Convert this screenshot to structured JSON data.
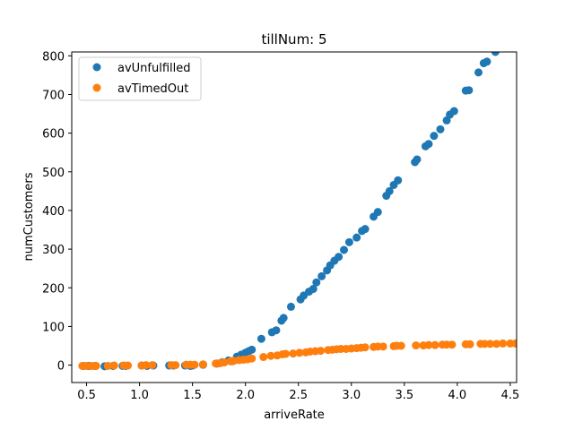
{
  "chart_data": {
    "type": "scatter",
    "title": "tillNum: 5",
    "xlabel": "arriveRate",
    "ylabel": "numCustomers",
    "xlim": [
      0.36,
      4.56
    ],
    "ylim": [
      -45,
      810
    ],
    "xticks": [
      0.5,
      1.0,
      1.5,
      2.0,
      2.5,
      3.0,
      3.5,
      4.0,
      4.5
    ],
    "yticks": [
      0,
      100,
      200,
      300,
      400,
      500,
      600,
      700,
      800
    ],
    "xtick_labels": [
      "0.5",
      "1.0",
      "1.5",
      "2.0",
      "2.5",
      "3.0",
      "3.5",
      "4.0",
      "4.5"
    ],
    "ytick_labels": [
      "0",
      "100",
      "200",
      "300",
      "400",
      "500",
      "600",
      "700",
      "800"
    ],
    "grid": false,
    "legend_position": "top-left",
    "series": [
      {
        "name": "avUnfulfilled",
        "color": "#1f77b4",
        "x": [
          0.47,
          0.52,
          0.58,
          0.67,
          0.75,
          0.84,
          0.87,
          1.02,
          1.07,
          1.13,
          1.28,
          1.32,
          1.43,
          1.48,
          1.5,
          1.6,
          1.73,
          1.78,
          1.84,
          1.87,
          1.92,
          1.96,
          2.0,
          2.03,
          2.06,
          2.15,
          2.25,
          2.29,
          2.34,
          2.36,
          2.43,
          2.52,
          2.55,
          2.6,
          2.64,
          2.67,
          2.72,
          2.77,
          2.8,
          2.84,
          2.88,
          2.93,
          2.98,
          3.05,
          3.1,
          3.13,
          3.21,
          3.25,
          3.33,
          3.36,
          3.4,
          3.44,
          3.6,
          3.62,
          3.7,
          3.73,
          3.78,
          3.84,
          3.9,
          3.93,
          3.97,
          4.08,
          4.11,
          4.2,
          4.25,
          4.28,
          4.36
        ],
        "y": [
          -2,
          -2,
          -2,
          -3,
          -2,
          -2,
          -2,
          -1,
          -2,
          -1,
          -1,
          -1,
          -1,
          -2,
          -1,
          1,
          4,
          7,
          12,
          10,
          22,
          27,
          32,
          36,
          40,
          68,
          85,
          90,
          115,
          122,
          151,
          170,
          180,
          190,
          197,
          214,
          230,
          245,
          258,
          270,
          280,
          298,
          318,
          330,
          347,
          352,
          384,
          396,
          438,
          450,
          466,
          478,
          525,
          532,
          566,
          572,
          593,
          610,
          633,
          648,
          657,
          710,
          711,
          757,
          781,
          785,
          810
        ]
      },
      {
        "name": "avTimedOut",
        "color": "#ff7f0e",
        "x": [
          0.46,
          0.5,
          0.55,
          0.59,
          0.7,
          0.76,
          0.85,
          0.89,
          1.02,
          1.06,
          1.12,
          1.3,
          1.34,
          1.44,
          1.48,
          1.52,
          1.6,
          1.72,
          1.76,
          1.8,
          1.86,
          1.89,
          1.94,
          1.98,
          2.02,
          2.06,
          2.17,
          2.24,
          2.3,
          2.35,
          2.38,
          2.45,
          2.51,
          2.57,
          2.61,
          2.66,
          2.71,
          2.78,
          2.82,
          2.86,
          2.9,
          2.95,
          3.0,
          3.05,
          3.09,
          3.13,
          3.21,
          3.25,
          3.3,
          3.4,
          3.43,
          3.47,
          3.61,
          3.68,
          3.73,
          3.79,
          3.86,
          3.9,
          3.95,
          4.08,
          4.12,
          4.22,
          4.26,
          4.31,
          4.37,
          4.43,
          4.5,
          4.55
        ],
        "y": [
          -2,
          -2,
          -2,
          -2,
          -2,
          -1,
          -1,
          -1,
          -1,
          0,
          0,
          0,
          0,
          1,
          1,
          1,
          2,
          4,
          5,
          7,
          10,
          11,
          13,
          14,
          15,
          17,
          21,
          24,
          25,
          28,
          29,
          30,
          32,
          33,
          35,
          36,
          37,
          39,
          40,
          41,
          42,
          42,
          43,
          44,
          45,
          46,
          47,
          48,
          48,
          49,
          50,
          50,
          51,
          51,
          52,
          52,
          53,
          53,
          53,
          54,
          54,
          55,
          55,
          55,
          55,
          56,
          56,
          56
        ]
      }
    ]
  }
}
